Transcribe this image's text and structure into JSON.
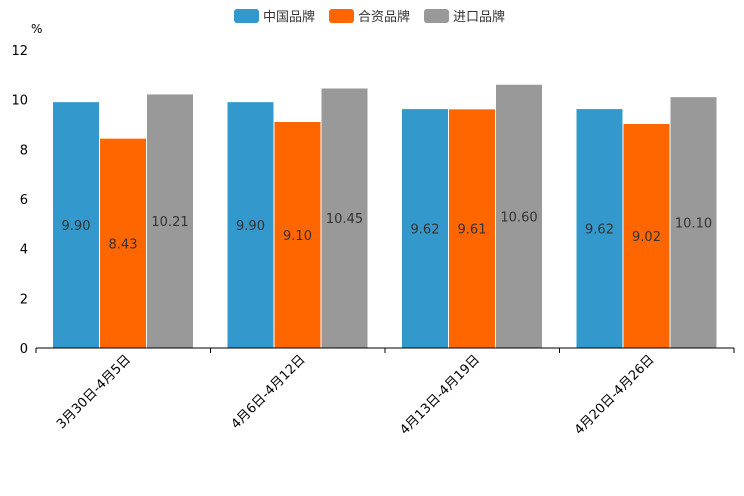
{
  "chart_data": {
    "type": "bar",
    "title": "",
    "ylabel": "%",
    "xlabel": "",
    "ylim": [
      0,
      12
    ],
    "yticks": [
      0,
      2,
      4,
      6,
      8,
      10,
      12
    ],
    "grid": false,
    "legend_position": "top-center",
    "categories": [
      "3月30日-4月5日",
      "4月6日-4月12日",
      "4月13日-4月19日",
      "4月20日-4月26日"
    ],
    "series": [
      {
        "name": "中国品牌",
        "color": "#3399cc",
        "values": [
          9.9,
          9.9,
          9.62,
          9.62
        ],
        "labels": [
          "9.90",
          "9.90",
          "9.62",
          "9.62"
        ]
      },
      {
        "name": "合资品牌",
        "color": "#ff6600",
        "values": [
          8.43,
          9.1,
          9.61,
          9.02
        ],
        "labels": [
          "8.43",
          "9.10",
          "9.61",
          "9.02"
        ]
      },
      {
        "name": "进口品牌",
        "color": "#999999",
        "values": [
          10.21,
          10.45,
          10.6,
          10.1
        ],
        "labels": [
          "10.21",
          "10.45",
          "10.60",
          "10.10"
        ]
      }
    ]
  }
}
